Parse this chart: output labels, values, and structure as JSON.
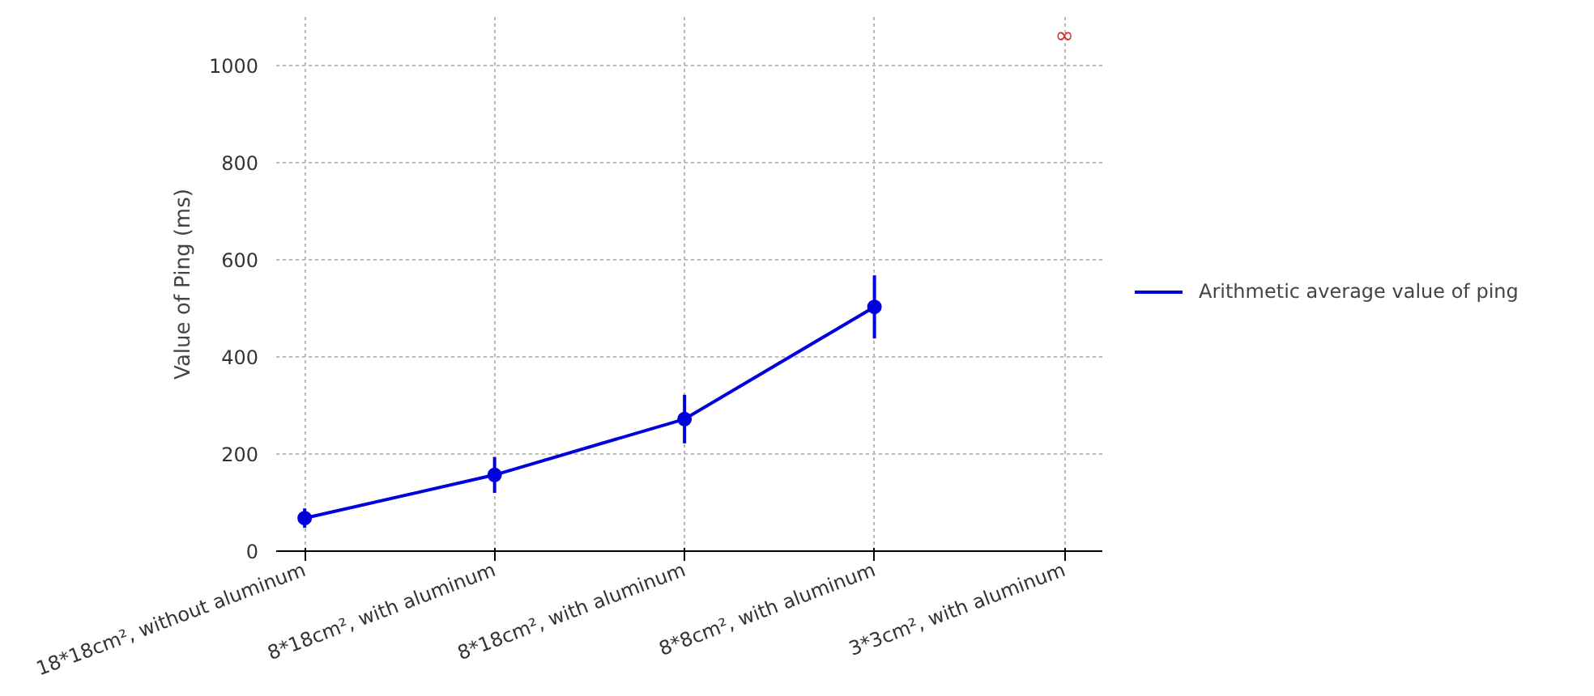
{
  "chart_data": {
    "type": "line",
    "ylabel": "Value of Ping (ms)",
    "categories": [
      "18*18cm², without aluminum",
      "8*18cm², with aluminum",
      "8*18cm², with aluminum",
      "8*8cm², with aluminum",
      "3*3cm², with aluminum"
    ],
    "series": [
      {
        "name": "Arithmetic average value of ping",
        "color": "#0000dd",
        "values": [
          68,
          157,
          272,
          503,
          null
        ],
        "errors": [
          20,
          37,
          50,
          65,
          null
        ]
      }
    ],
    "ylim": [
      0,
      1100
    ],
    "yticks": [
      0,
      200,
      400,
      600,
      800,
      1000
    ],
    "grid": true,
    "legend": "right",
    "marker": "circle",
    "line_style": "solid",
    "annotations": [
      "∞"
    ]
  }
}
